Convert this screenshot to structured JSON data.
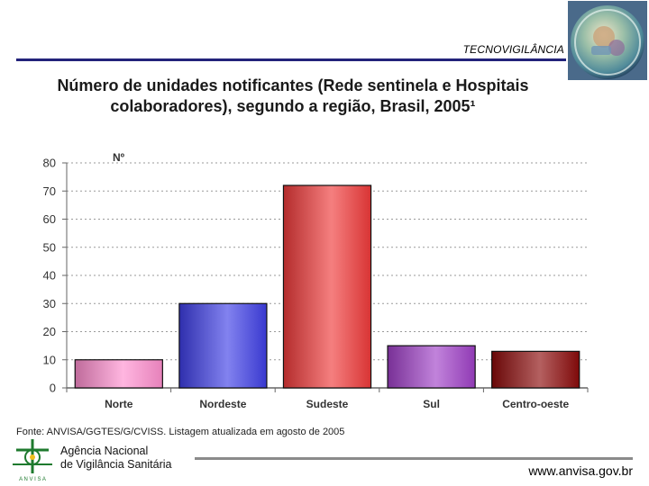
{
  "header": {
    "title": "TECNOVIGILÂNCIA"
  },
  "slide": {
    "title_line1": "Número de unidades notificantes (Rede sentinela e Hospitais",
    "title_line2": "colaboradores), segundo a região, Brasil, 2005¹"
  },
  "chart_data": {
    "type": "bar",
    "title": "Número de unidades notificantes (Rede sentinela e Hospitais colaboradores), segundo a região, Brasil, 2005¹",
    "ylabel": "Nº",
    "xlabel": "",
    "categories": [
      "Norte",
      "Nordeste",
      "Sudeste",
      "Sul",
      "Centro-oeste"
    ],
    "values": [
      10,
      30,
      72,
      15,
      13
    ],
    "colors": [
      "#ff8fcf",
      "#3f3fe6",
      "#f03a3a",
      "#a040c8",
      "#8c0a0a"
    ],
    "ylim": [
      0,
      80
    ],
    "yticks": [
      "0",
      "10",
      "20",
      "30",
      "40",
      "50",
      "60",
      "70",
      "80"
    ],
    "grid": true
  },
  "footer": {
    "source": "Fonte: ANVISA/GGTES/G/CVISS. Listagem atualizada em agosto de 2005",
    "agency_line1": "Agência Nacional",
    "agency_line2": "de Vigilância Sanitária",
    "agency_acronym": "A N V I S A",
    "url": "www.anvisa.gov.br"
  }
}
